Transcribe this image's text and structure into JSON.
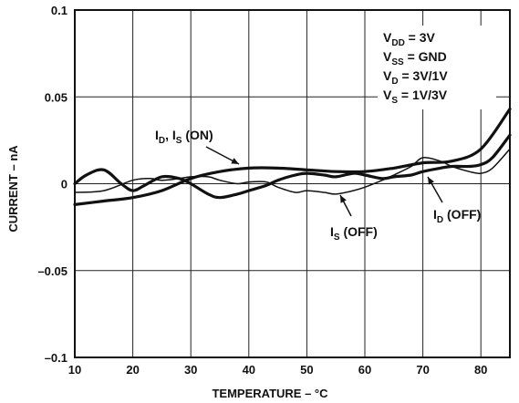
{
  "chart_data": {
    "type": "line",
    "title": "",
    "xlabel": "TEMPERATURE – °C",
    "ylabel": "CURRENT – nA",
    "xlim": [
      10,
      85
    ],
    "ylim": [
      -0.1,
      0.1
    ],
    "x_ticks": [
      10,
      20,
      30,
      40,
      50,
      60,
      70,
      80
    ],
    "y_ticks": [
      {
        "value": 0.1,
        "label": "0.1"
      },
      {
        "value": 0.05,
        "label": "0.05"
      },
      {
        "value": 0,
        "label": "0"
      },
      {
        "value": -0.05,
        "label": "–0.05"
      },
      {
        "value": -0.1,
        "label": "–0.1"
      }
    ],
    "grid": true,
    "conditions": [
      {
        "main": "V",
        "sub": "DD",
        "rest": " = 3V"
      },
      {
        "main": "V",
        "sub": "SS",
        "rest": " = GND"
      },
      {
        "main": "V",
        "sub": "D",
        "rest": " = 3V/1V"
      },
      {
        "main": "V",
        "sub": "S",
        "rest": " = 1V/3V"
      }
    ],
    "annotations": {
      "on": [
        {
          "main": "I",
          "sub": "D"
        },
        {
          "main": ", I",
          "sub": "S"
        },
        {
          "main": " (ON)",
          "sub": ""
        }
      ],
      "s_off": [
        {
          "main": "I",
          "sub": "S"
        },
        {
          "main": " (OFF)",
          "sub": ""
        }
      ],
      "d_off": [
        {
          "main": "I",
          "sub": "D"
        },
        {
          "main": " (OFF)",
          "sub": ""
        }
      ]
    },
    "series": [
      {
        "key": "on",
        "stroke_width": 3.2,
        "x": [
          10,
          15,
          20,
          25,
          30,
          35,
          40,
          45,
          50,
          55,
          60,
          65,
          70,
          75,
          80,
          85
        ],
        "y": [
          -0.012,
          -0.01,
          -0.008,
          -0.004,
          0.003,
          0.007,
          0.009,
          0.009,
          0.008,
          0.007,
          0.007,
          0.009,
          0.012,
          0.013,
          0.02,
          0.043
        ]
      },
      {
        "key": "d_off",
        "stroke_width": 3.2,
        "x": [
          10,
          12,
          15,
          18,
          20,
          22,
          25,
          28,
          30,
          33,
          35,
          38,
          40,
          43,
          45,
          48,
          50,
          53,
          55,
          58,
          60,
          63,
          65,
          68,
          70,
          73,
          75,
          78,
          80,
          82,
          85
        ],
        "y": [
          0.0,
          0.005,
          0.008,
          0.0,
          -0.004,
          -0.001,
          0.004,
          0.003,
          0.0,
          -0.006,
          -0.008,
          -0.006,
          -0.004,
          -0.001,
          0.002,
          0.005,
          0.006,
          0.005,
          0.004,
          0.006,
          0.005,
          0.003,
          0.004,
          0.005,
          0.007,
          0.009,
          0.01,
          0.01,
          0.011,
          0.015,
          0.028
        ]
      },
      {
        "key": "s_off",
        "stroke_width": 1.5,
        "x": [
          10,
          15,
          20,
          23,
          25,
          28,
          30,
          33,
          35,
          38,
          40,
          43,
          45,
          48,
          50,
          53,
          55,
          58,
          60,
          63,
          65,
          68,
          70,
          73,
          75,
          78,
          80,
          82,
          85
        ],
        "y": [
          -0.005,
          -0.004,
          0.002,
          0.003,
          0.002,
          0.003,
          0.004,
          0.004,
          0.002,
          0.0,
          0.001,
          0.001,
          -0.002,
          -0.005,
          -0.004,
          -0.005,
          -0.006,
          -0.004,
          -0.002,
          0.002,
          0.005,
          0.01,
          0.015,
          0.013,
          0.01,
          0.007,
          0.006,
          0.009,
          0.02
        ]
      }
    ]
  }
}
